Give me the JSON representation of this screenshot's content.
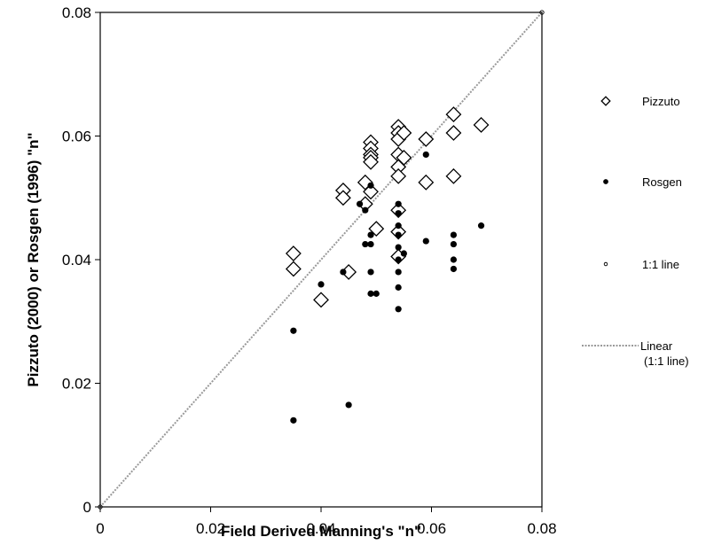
{
  "chart_data": {
    "type": "scatter",
    "xlabel": "Field Derived Manning's \"n\"",
    "ylabel": "Pizzuto (2000) or Rosgen (1996) \"n\"",
    "xlim": [
      0,
      0.08
    ],
    "ylim": [
      0,
      0.08
    ],
    "x_ticks": [
      "0",
      "0.02",
      "0.04",
      "0.06",
      "0.08"
    ],
    "y_ticks": [
      "0",
      "0.02",
      "0.04",
      "0.06",
      "0.08"
    ],
    "grid": false,
    "legend_position": "right",
    "series": [
      {
        "name": "Pizzuto",
        "marker": "open-diamond",
        "color": "#000000",
        "points": [
          [
            0.035,
            0.041
          ],
          [
            0.035,
            0.0385
          ],
          [
            0.04,
            0.0335
          ],
          [
            0.044,
            0.0512
          ],
          [
            0.044,
            0.05
          ],
          [
            0.045,
            0.038
          ],
          [
            0.048,
            0.0525
          ],
          [
            0.048,
            0.049
          ],
          [
            0.049,
            0.059
          ],
          [
            0.049,
            0.058
          ],
          [
            0.049,
            0.057
          ],
          [
            0.049,
            0.0565
          ],
          [
            0.049,
            0.0558
          ],
          [
            0.049,
            0.051
          ],
          [
            0.05,
            0.045
          ],
          [
            0.054,
            0.0615
          ],
          [
            0.054,
            0.0605
          ],
          [
            0.054,
            0.0595
          ],
          [
            0.054,
            0.057
          ],
          [
            0.054,
            0.055
          ],
          [
            0.054,
            0.0535
          ],
          [
            0.054,
            0.048
          ],
          [
            0.054,
            0.0445
          ],
          [
            0.054,
            0.0405
          ],
          [
            0.055,
            0.0605
          ],
          [
            0.055,
            0.0565
          ],
          [
            0.059,
            0.0595
          ],
          [
            0.059,
            0.0525
          ],
          [
            0.064,
            0.0635
          ],
          [
            0.064,
            0.0605
          ],
          [
            0.064,
            0.0535
          ],
          [
            0.069,
            0.0618
          ]
        ]
      },
      {
        "name": "Rosgen",
        "marker": "filled-circle",
        "color": "#000000",
        "points": [
          [
            0.035,
            0.0285
          ],
          [
            0.035,
            0.014
          ],
          [
            0.04,
            0.036
          ],
          [
            0.044,
            0.038
          ],
          [
            0.045,
            0.0165
          ],
          [
            0.047,
            0.049
          ],
          [
            0.048,
            0.048
          ],
          [
            0.048,
            0.0425
          ],
          [
            0.049,
            0.052
          ],
          [
            0.049,
            0.044
          ],
          [
            0.049,
            0.0425
          ],
          [
            0.049,
            0.038
          ],
          [
            0.049,
            0.0345
          ],
          [
            0.05,
            0.0345
          ],
          [
            0.054,
            0.049
          ],
          [
            0.054,
            0.0475
          ],
          [
            0.054,
            0.0455
          ],
          [
            0.054,
            0.044
          ],
          [
            0.054,
            0.042
          ],
          [
            0.054,
            0.04
          ],
          [
            0.054,
            0.038
          ],
          [
            0.054,
            0.0355
          ],
          [
            0.054,
            0.032
          ],
          [
            0.055,
            0.041
          ],
          [
            0.059,
            0.057
          ],
          [
            0.059,
            0.043
          ],
          [
            0.064,
            0.044
          ],
          [
            0.064,
            0.0425
          ],
          [
            0.064,
            0.04
          ],
          [
            0.064,
            0.0385
          ],
          [
            0.069,
            0.0455
          ]
        ]
      },
      {
        "name": "1:1 line",
        "marker": "small-open-circle",
        "color": "#000000",
        "points": [
          [
            0,
            0
          ],
          [
            0.08,
            0.08
          ]
        ]
      }
    ],
    "lines": [
      {
        "name": "Linear\n(1:1 line)",
        "style": "dotted",
        "color": "#999999",
        "from": [
          0,
          0
        ],
        "to": [
          0.08,
          0.08
        ]
      }
    ]
  }
}
